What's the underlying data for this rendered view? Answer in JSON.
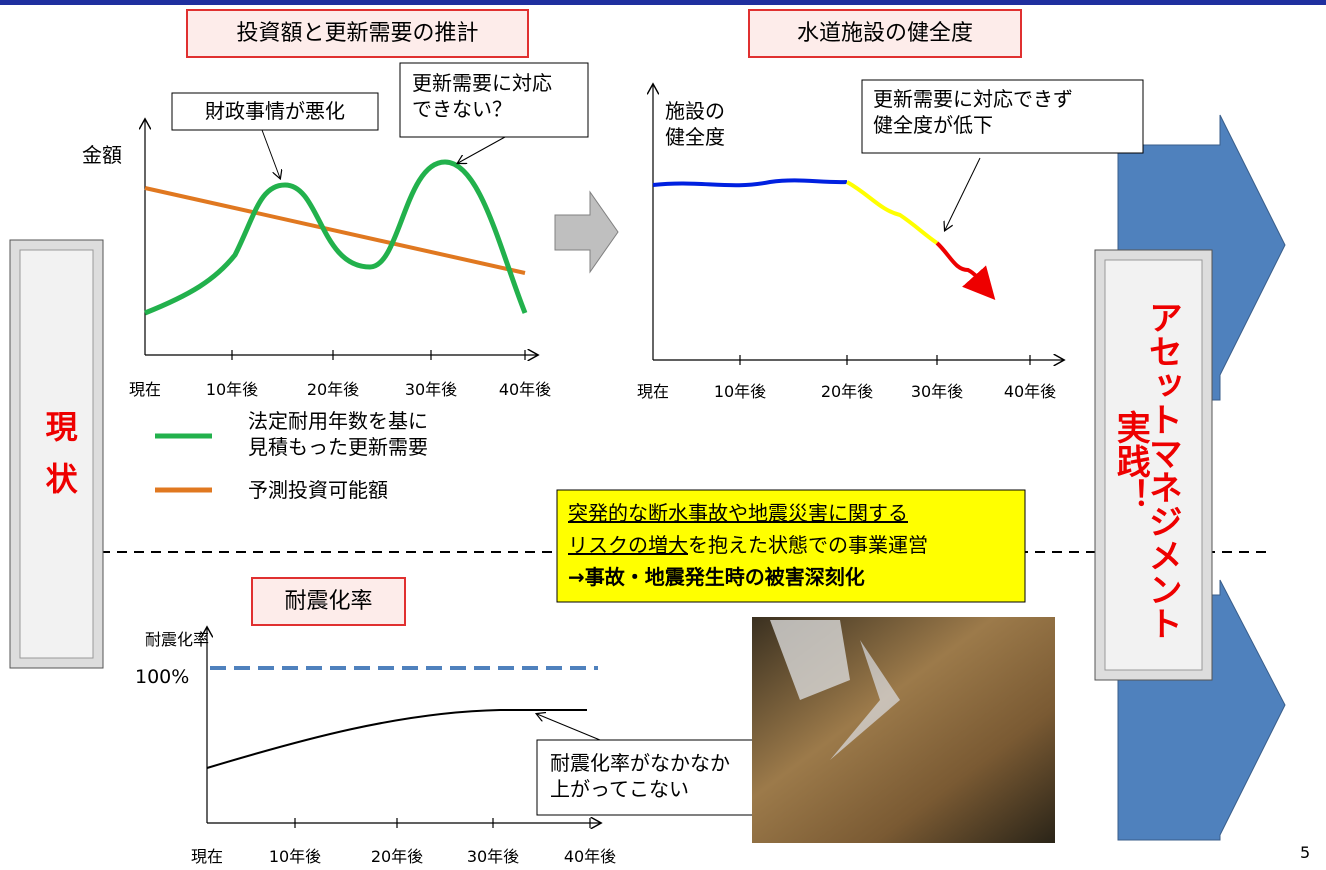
{
  "chart1": {
    "title": "投資額と更新需要の推計",
    "y_label": "金額",
    "x_labels": [
      "現在",
      "10年後",
      "20年後",
      "30年後",
      "40年後"
    ],
    "callouts": [
      "財政事情が悪化",
      "更新需要に対応\nできない？"
    ]
  },
  "legend": [
    "法定耐用年数を基に\n見積もった更新需要",
    "予測投資可能額"
  ],
  "chart2": {
    "title": "水道施設の健全度",
    "y_label": "施設の\n健全度",
    "x_labels": [
      "現在",
      "10年後",
      "20年後",
      "30年後",
      "40年後"
    ],
    "callout": "更新需要に対応できず\n健全度が低下"
  },
  "chart3": {
    "title": "耐震化率",
    "y_label": "耐震化率",
    "level_label": "100%",
    "x_labels": [
      "現在",
      "10年後",
      "20年後",
      "30年後",
      "40年後"
    ],
    "callout": "耐震化率がなかなか\n上がってこない"
  },
  "status": "現状",
  "risk_box": {
    "line1": "突発的な断水事故や地震災害に関する",
    "line2_underlined": "リスクの増大",
    "line2_rest": "を抱えた状態での事業運営",
    "line3": "→事故・地震発生時の被害深刻化"
  },
  "action": {
    "main": "アセットマネジメント",
    "sub": "実践！"
  },
  "page_number": "5"
}
